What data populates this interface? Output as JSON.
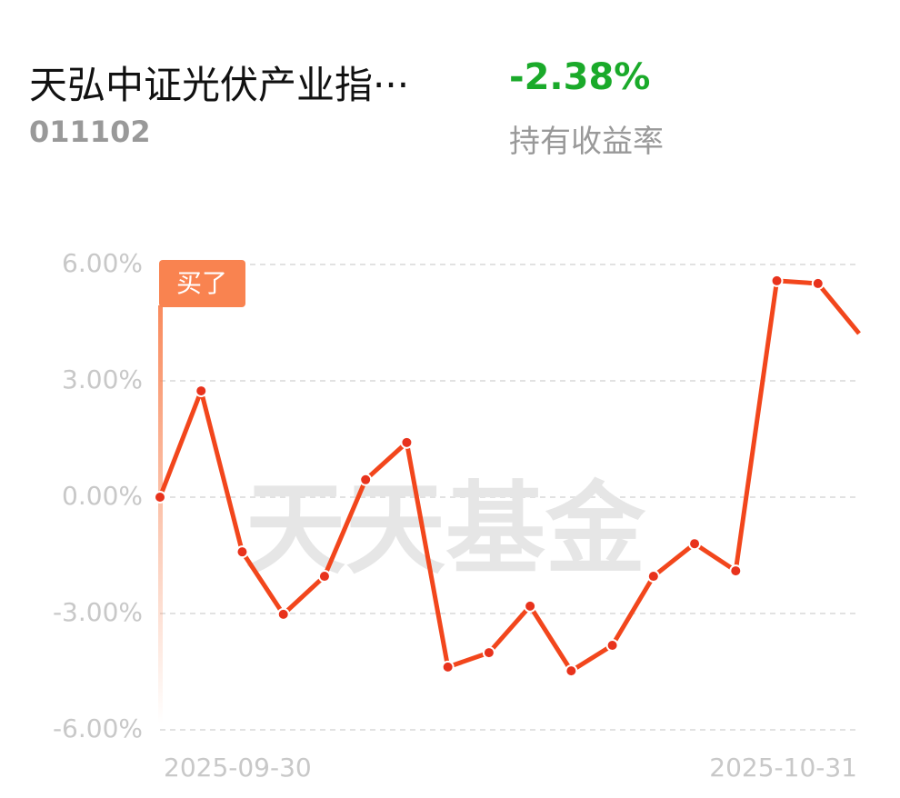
{
  "header": {
    "title": "天弘中证光伏产业指···",
    "code": "011102",
    "return": "-2.38%",
    "return_label": "持有收益率"
  },
  "chart_data": {
    "type": "line",
    "categories": [
      "2025-09-30",
      null,
      null,
      null,
      null,
      null,
      null,
      null,
      null,
      null,
      null,
      null,
      null,
      null,
      null,
      null,
      null,
      "2025-10-31"
    ],
    "series": [
      {
        "color": "#f2461c",
        "values": [
          0.0,
          2.74,
          -1.41,
          -3.02,
          -2.04,
          0.45,
          1.41,
          -4.38,
          -4.01,
          -2.81,
          -4.48,
          -3.82,
          -2.04,
          -1.2,
          -1.9,
          5.58,
          5.51,
          4.22
        ]
      }
    ],
    "ylim": [
      -6,
      6
    ],
    "yticks": [
      {
        "value": 6,
        "label": "6.00%"
      },
      {
        "value": 3,
        "label": "3.00%"
      },
      {
        "value": 0,
        "label": "0.00%"
      },
      {
        "value": -3,
        "label": "-3.00%"
      },
      {
        "value": -6,
        "label": "-6.00%"
      }
    ],
    "grid": true,
    "annotation": "买了",
    "watermark": "天天基金"
  }
}
